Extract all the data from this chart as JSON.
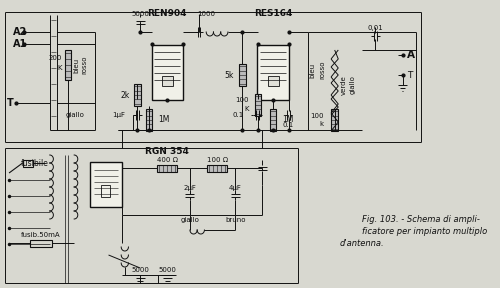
{
  "bg_color": "#d8d8d0",
  "fig_caption_1": "Fig. 103. - Schema di ampli-",
  "fig_caption_2": "ficatore per impianto multiplo",
  "fig_caption_3": "d'antenna.",
  "title_ren904": "REN904",
  "title_res164": "RES164",
  "title_rgn354": "RGN 354",
  "lc": "#111111",
  "tc": "#111111",
  "fs": 6.5
}
